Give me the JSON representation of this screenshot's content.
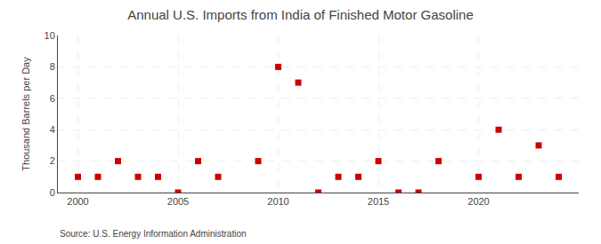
{
  "chart_data": {
    "type": "scatter",
    "title": "Annual U.S. Imports from India of Finished Motor Gasoline",
    "ylabel": "Thousand Barrels per Day",
    "annotations": [
      "Source: U.S. Energy Information Administration"
    ],
    "x": [
      2000,
      2001,
      2002,
      2003,
      2004,
      2005,
      2006,
      2007,
      2009,
      2010,
      2011,
      2012,
      2013,
      2014,
      2015,
      2016,
      2017,
      2018,
      2020,
      2021,
      2022,
      2023,
      2024
    ],
    "values": [
      1,
      1,
      2,
      1,
      1,
      0,
      2,
      1,
      2,
      8,
      7,
      0,
      1,
      1,
      2,
      0,
      0,
      2,
      1,
      4,
      1,
      3,
      1
    ],
    "color": "#cc0000",
    "marker": "square",
    "xlim": [
      1999,
      2025
    ],
    "xticks": [
      2000,
      2005,
      2010,
      2015,
      2020
    ],
    "ylim": [
      0,
      10
    ],
    "yticks": [
      0,
      2,
      4,
      6,
      8,
      10
    ],
    "grid": true
  }
}
